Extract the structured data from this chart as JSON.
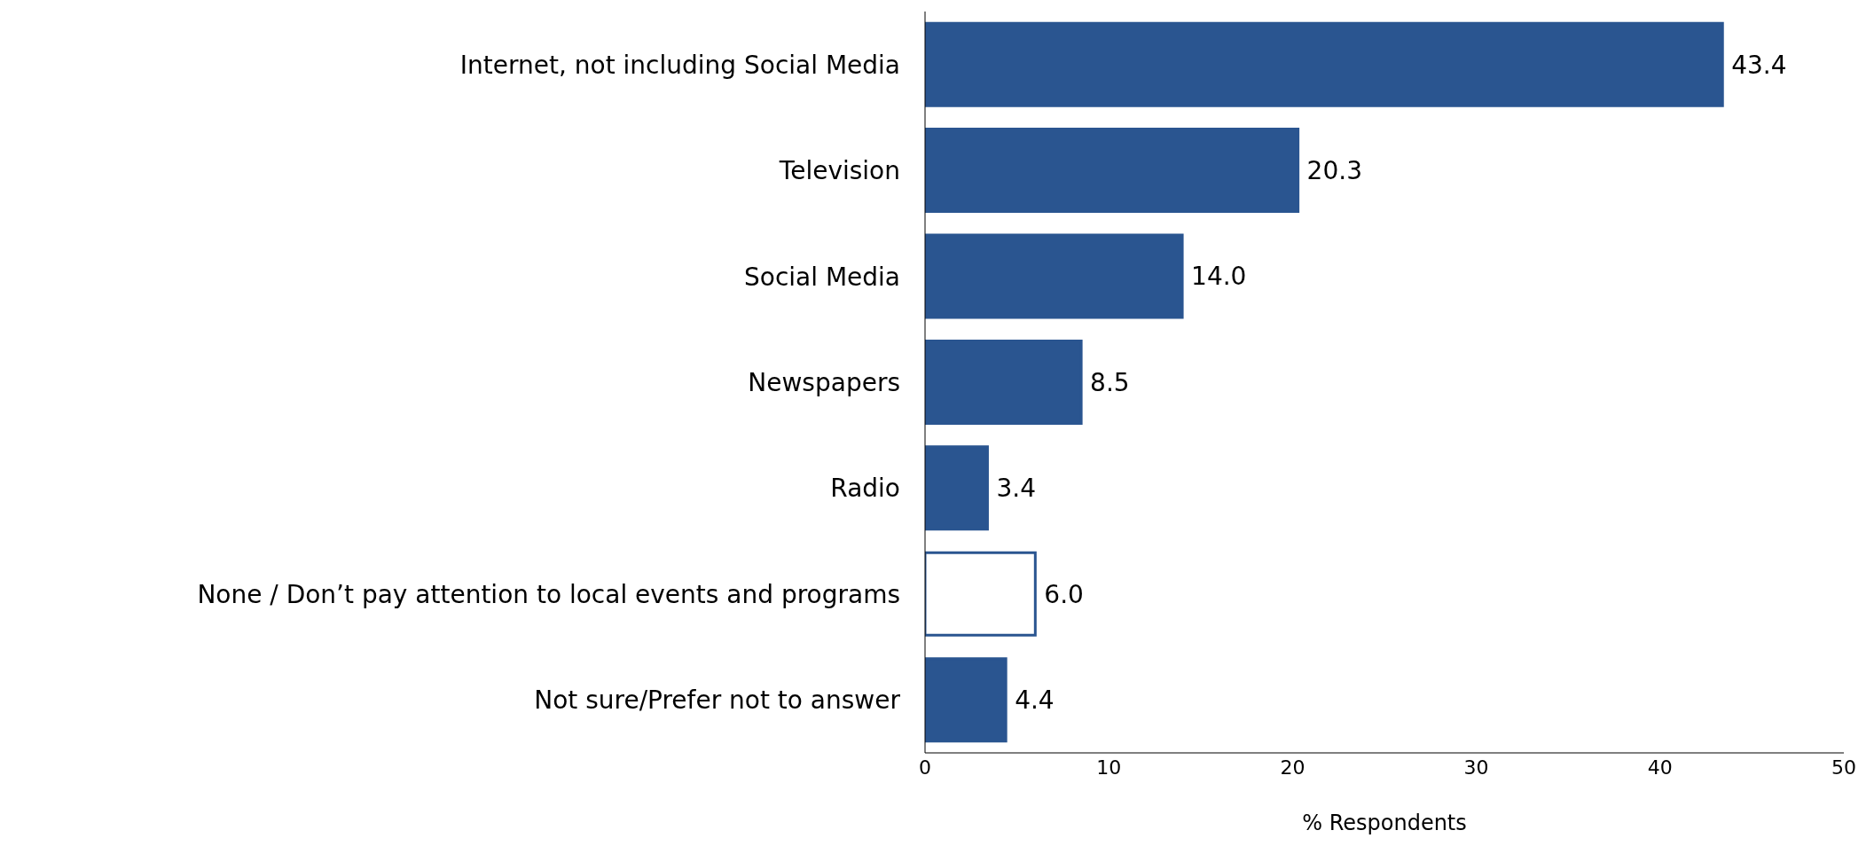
{
  "chart_data": {
    "type": "bar",
    "orientation": "horizontal",
    "xlabel": "% Respondents",
    "categories": [
      "Internet, not including Social Media",
      "Television",
      "Social Media",
      "Newspapers",
      "Radio",
      "None / Don’t pay attention to local events and programs",
      "Not sure/Prefer not to answer"
    ],
    "values": [
      43.4,
      20.3,
      14.0,
      8.5,
      3.4,
      6.0,
      4.4
    ],
    "value_labels": [
      "43.4",
      "20.3",
      "14.0",
      "8.5",
      "3.4",
      "6.0",
      "4.4"
    ],
    "color": "#2a5590",
    "colors": [
      "#2a5590",
      "#2a5590",
      "#2a5590",
      "#2a5590",
      "#2a5590",
      "#ffffff",
      "#2a5590"
    ],
    "xlim": [
      0,
      50
    ],
    "xticks": [
      0,
      10,
      20,
      30,
      40,
      50
    ],
    "grid": false
  }
}
